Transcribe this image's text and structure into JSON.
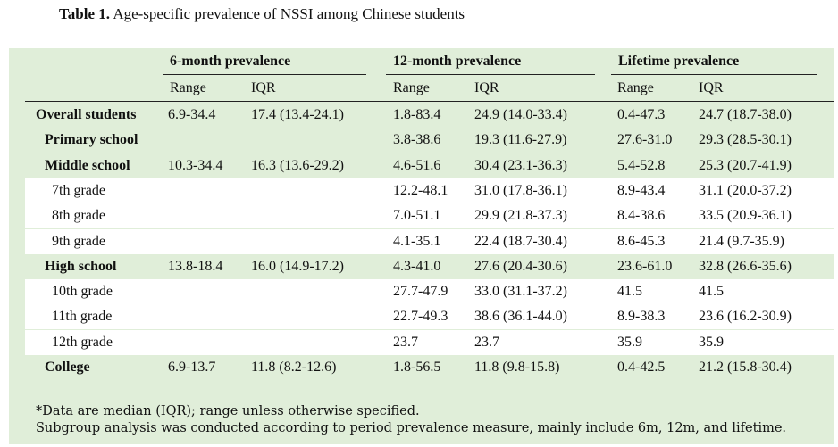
{
  "caption": {
    "label": "Table 1.",
    "text": " Age-specific prevalence of NSSI among Chinese students"
  },
  "groups": [
    "6-month prevalence",
    "12-month prevalence",
    "Lifetime prevalence"
  ],
  "subheaders": [
    "Range",
    "IQR",
    "Range",
    "IQR",
    "Range",
    "IQR"
  ],
  "rows": [
    {
      "label": "Overall students",
      "sub": false,
      "cells": [
        "6.9-34.4",
        "17.4 (13.4-24.1)",
        "1.8-83.4",
        "24.9 (14.0-33.4)",
        "0.4-47.3",
        "24.7 (18.7-38.0)"
      ]
    },
    {
      "label": "Primary school",
      "sub": false,
      "cells": [
        "",
        "",
        "3.8-38.6",
        "19.3 (11.6-27.9)",
        "27.6-31.0",
        "29.3 (28.5-30.1)"
      ]
    },
    {
      "label": "Middle school",
      "sub": false,
      "cells": [
        "10.3-34.4",
        "16.3 (13.6-29.2)",
        "4.6-51.6",
        "30.4 (23.1-36.3)",
        "5.4-52.8",
        "25.3 (20.7-41.9)"
      ]
    },
    {
      "label": "7th grade",
      "sub": true,
      "cells": [
        "",
        "",
        "12.2-48.1",
        "31.0 (17.8-36.1)",
        "8.9-43.4",
        "31.1 (20.0-37.2)"
      ]
    },
    {
      "label": "8th grade",
      "sub": true,
      "cells": [
        "",
        "",
        "7.0-51.1",
        "29.9 (21.8-37.3)",
        "8.4-38.6",
        "33.5 (20.9-36.1)"
      ]
    },
    {
      "label": "9th grade",
      "sub": true,
      "cells": [
        "",
        "",
        "4.1-35.1",
        "22.4 (18.7-30.4)",
        "8.6-45.3",
        "21.4 (9.7-35.9)"
      ]
    },
    {
      "label": "High school",
      "sub": false,
      "cells": [
        "13.8-18.4",
        "16.0 (14.9-17.2)",
        "4.3-41.0",
        "27.6 (20.4-30.6)",
        "23.6-61.0",
        "32.8 (26.6-35.6)"
      ]
    },
    {
      "label": "10th grade",
      "sub": true,
      "cells": [
        "",
        "",
        "27.7-47.9",
        "33.0 (31.1-37.2)",
        "41.5",
        "41.5"
      ]
    },
    {
      "label": "11th grade",
      "sub": true,
      "cells": [
        "",
        "",
        "22.7-49.3",
        "38.6 (36.1-44.0)",
        "8.9-38.3",
        "23.6 (16.2-30.9)"
      ]
    },
    {
      "label": "12th grade",
      "sub": true,
      "cells": [
        "",
        "",
        "23.7",
        "23.7",
        "35.9",
        "35.9"
      ]
    },
    {
      "label": "College",
      "sub": false,
      "cells": [
        "6.9-13.7",
        "11.8 (8.2-12.6)",
        "1.8-56.5",
        "11.8 (9.8-15.8)",
        "0.4-42.5",
        "21.2 (15.8-30.4)"
      ]
    }
  ],
  "notes": [
    "*Data are median (IQR); range unless otherwise specified.",
    "Subgroup analysis was conducted according to period prevalence measure, mainly include 6m, 12m, and lifetime."
  ]
}
